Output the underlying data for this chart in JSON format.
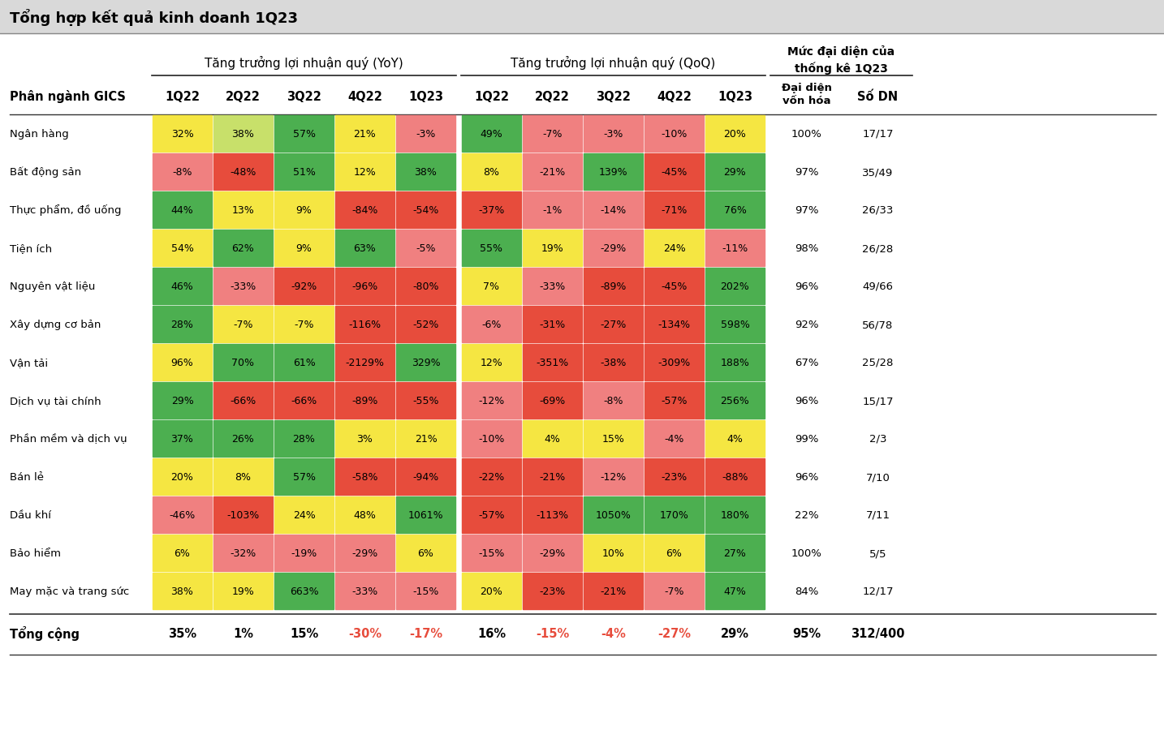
{
  "title": "Tổng hợp kết quả kinh doanh 1Q23",
  "col_header1": "Tăng trưởng lợi nhuận quý (YoY)",
  "col_header2": "Tăng trưởng lợi nhuận quý (QoQ)",
  "col_header3_line1": "Mức đại diện của",
  "col_header3_line2": "thống kê 1Q23",
  "sub_header_left": "Phân ngành GICS",
  "sub_col1": [
    "1Q22",
    "2Q22",
    "3Q22",
    "4Q22",
    "1Q23"
  ],
  "sub_col2": [
    "1Q22",
    "2Q22",
    "3Q22",
    "4Q22",
    "1Q23"
  ],
  "sub_col3a": "Đại diện\nvốn hóa",
  "sub_col3b": "Số DN",
  "row_labels": [
    "Ngân hàng",
    "Bất động sản",
    "Thực phẩm, đồ uống",
    "Tiện ích",
    "Nguyên vật liệu",
    "Xây dựng cơ bản",
    "Vận tải",
    "Dịch vụ tài chính",
    "Phần mềm và dịch vụ",
    "Bán lẻ",
    "Dầu khí",
    "Bảo hiểm",
    "May mặc và trang sức"
  ],
  "footer_label": "Tổng cộng",
  "yoy_data": [
    [
      "32%",
      "38%",
      "57%",
      "21%",
      "-3%"
    ],
    [
      "-8%",
      "-48%",
      "51%",
      "12%",
      "38%"
    ],
    [
      "44%",
      "13%",
      "9%",
      "-84%",
      "-54%"
    ],
    [
      "54%",
      "62%",
      "9%",
      "63%",
      "-5%"
    ],
    [
      "46%",
      "-33%",
      "-92%",
      "-96%",
      "-80%"
    ],
    [
      "28%",
      "-7%",
      "-7%",
      "-116%",
      "-52%"
    ],
    [
      "96%",
      "70%",
      "61%",
      "-2129%",
      "329%"
    ],
    [
      "29%",
      "-66%",
      "-66%",
      "-89%",
      "-55%"
    ],
    [
      "37%",
      "26%",
      "28%",
      "3%",
      "21%"
    ],
    [
      "20%",
      "8%",
      "57%",
      "-58%",
      "-94%"
    ],
    [
      "-46%",
      "-103%",
      "24%",
      "48%",
      "1061%"
    ],
    [
      "6%",
      "-32%",
      "-19%",
      "-29%",
      "6%"
    ],
    [
      "38%",
      "19%",
      "663%",
      "-33%",
      "-15%"
    ]
  ],
  "qoq_data": [
    [
      "49%",
      "-7%",
      "-3%",
      "-10%",
      "20%"
    ],
    [
      "8%",
      "-21%",
      "139%",
      "-45%",
      "29%"
    ],
    [
      "-37%",
      "-1%",
      "-14%",
      "-71%",
      "76%"
    ],
    [
      "55%",
      "19%",
      "-29%",
      "24%",
      "-11%"
    ],
    [
      "7%",
      "-33%",
      "-89%",
      "-45%",
      "202%"
    ],
    [
      "-6%",
      "-31%",
      "-27%",
      "-134%",
      "598%"
    ],
    [
      "12%",
      "-351%",
      "-38%",
      "-309%",
      "188%"
    ],
    [
      "-12%",
      "-69%",
      "-8%",
      "-57%",
      "256%"
    ],
    [
      "-10%",
      "4%",
      "15%",
      "-4%",
      "4%"
    ],
    [
      "-22%",
      "-21%",
      "-12%",
      "-23%",
      "-88%"
    ],
    [
      "-57%",
      "-113%",
      "1050%",
      "170%",
      "180%"
    ],
    [
      "-15%",
      "-29%",
      "10%",
      "6%",
      "27%"
    ],
    [
      "20%",
      "-23%",
      "-21%",
      "-7%",
      "47%"
    ]
  ],
  "rep_data": [
    [
      "100%",
      "17/17"
    ],
    [
      "97%",
      "35/49"
    ],
    [
      "97%",
      "26/33"
    ],
    [
      "98%",
      "26/28"
    ],
    [
      "96%",
      "49/66"
    ],
    [
      "92%",
      "56/78"
    ],
    [
      "67%",
      "25/28"
    ],
    [
      "96%",
      "15/17"
    ],
    [
      "99%",
      "2/3"
    ],
    [
      "96%",
      "7/10"
    ],
    [
      "22%",
      "7/11"
    ],
    [
      "100%",
      "5/5"
    ],
    [
      "84%",
      "12/17"
    ]
  ],
  "footer_yoy": [
    "35%",
    "1%",
    "15%",
    "-30%",
    "-17%"
  ],
  "footer_qoq": [
    "16%",
    "-15%",
    "-4%",
    "-27%",
    "29%"
  ],
  "footer_rep": [
    "95%",
    "312/400"
  ],
  "yoy_colors": [
    [
      "#f5e642",
      "#c8e06a",
      "#4caf50",
      "#f5e642",
      "#f08080"
    ],
    [
      "#f08080",
      "#e74c3c",
      "#4caf50",
      "#f5e642",
      "#4caf50"
    ],
    [
      "#4caf50",
      "#f5e642",
      "#f5e642",
      "#e74c3c",
      "#e74c3c"
    ],
    [
      "#f5e642",
      "#4caf50",
      "#f5e642",
      "#4caf50",
      "#f08080"
    ],
    [
      "#4caf50",
      "#f08080",
      "#e74c3c",
      "#e74c3c",
      "#e74c3c"
    ],
    [
      "#4caf50",
      "#f5e642",
      "#f5e642",
      "#e74c3c",
      "#e74c3c"
    ],
    [
      "#f5e642",
      "#4caf50",
      "#4caf50",
      "#e74c3c",
      "#4caf50"
    ],
    [
      "#4caf50",
      "#e74c3c",
      "#e74c3c",
      "#e74c3c",
      "#e74c3c"
    ],
    [
      "#4caf50",
      "#4caf50",
      "#4caf50",
      "#f5e642",
      "#f5e642"
    ],
    [
      "#f5e642",
      "#f5e642",
      "#4caf50",
      "#e74c3c",
      "#e74c3c"
    ],
    [
      "#f08080",
      "#e74c3c",
      "#f5e642",
      "#f5e642",
      "#4caf50"
    ],
    [
      "#f5e642",
      "#f08080",
      "#f08080",
      "#f08080",
      "#f5e642"
    ],
    [
      "#f5e642",
      "#f5e642",
      "#4caf50",
      "#f08080",
      "#f08080"
    ]
  ],
  "qoq_colors": [
    [
      "#4caf50",
      "#f08080",
      "#f08080",
      "#f08080",
      "#f5e642"
    ],
    [
      "#f5e642",
      "#f08080",
      "#4caf50",
      "#e74c3c",
      "#4caf50"
    ],
    [
      "#e74c3c",
      "#f08080",
      "#f08080",
      "#e74c3c",
      "#4caf50"
    ],
    [
      "#4caf50",
      "#f5e642",
      "#f08080",
      "#f5e642",
      "#f08080"
    ],
    [
      "#f5e642",
      "#f08080",
      "#e74c3c",
      "#e74c3c",
      "#4caf50"
    ],
    [
      "#f08080",
      "#e74c3c",
      "#e74c3c",
      "#e74c3c",
      "#4caf50"
    ],
    [
      "#f5e642",
      "#e74c3c",
      "#e74c3c",
      "#e74c3c",
      "#4caf50"
    ],
    [
      "#f08080",
      "#e74c3c",
      "#f08080",
      "#e74c3c",
      "#4caf50"
    ],
    [
      "#f08080",
      "#f5e642",
      "#f5e642",
      "#f08080",
      "#f5e642"
    ],
    [
      "#e74c3c",
      "#e74c3c",
      "#f08080",
      "#e74c3c",
      "#e74c3c"
    ],
    [
      "#e74c3c",
      "#e74c3c",
      "#4caf50",
      "#4caf50",
      "#4caf50"
    ],
    [
      "#f08080",
      "#f08080",
      "#f5e642",
      "#f5e642",
      "#4caf50"
    ],
    [
      "#f5e642",
      "#e74c3c",
      "#e74c3c",
      "#f08080",
      "#4caf50"
    ]
  ],
  "footer_yoy_colors": [
    "#000000",
    "#000000",
    "#000000",
    "#e74c3c",
    "#e74c3c"
  ],
  "footer_qoq_colors": [
    "#000000",
    "#e74c3c",
    "#e74c3c",
    "#e74c3c",
    "#000000"
  ]
}
